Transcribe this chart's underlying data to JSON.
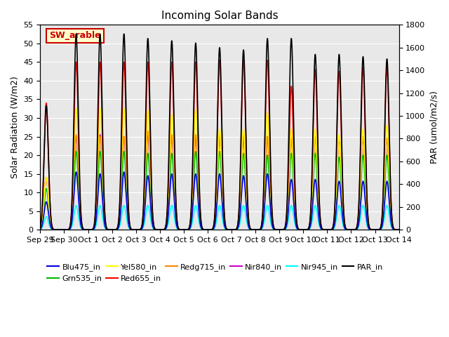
{
  "title": "Incoming Solar Bands",
  "ylabel_left": "Solar Radiation (W/m2)",
  "ylabel_right": "PAR (umol/m2/s)",
  "ylim_left": [
    0,
    55
  ],
  "ylim_right": [
    0,
    1800
  ],
  "yticks_left": [
    0,
    5,
    10,
    15,
    20,
    25,
    30,
    35,
    40,
    45,
    50,
    55
  ],
  "yticks_right": [
    0,
    200,
    400,
    600,
    800,
    1000,
    1200,
    1400,
    1600,
    1800
  ],
  "background_color": "#e8e8e8",
  "annotation_text": "SW_arable",
  "day_labels": [
    "Sep 29",
    "Sep 30",
    "Oct 1",
    "Oct 2",
    "Oct 3",
    "Oct 4",
    "Oct 5",
    "Oct 6",
    "Oct 7",
    "Oct 8",
    "Oct 9",
    "Oct 10",
    "Oct 11",
    "Oct 12",
    "Oct 13",
    "Oct 14"
  ],
  "n_days": 15,
  "pulse_sigma": 0.09,
  "series_colors": {
    "Blu475_in": "#0000dd",
    "Grn535_in": "#00bb00",
    "Yel580_in": "#ffff00",
    "Red655_in": "#ff0000",
    "Redg715_in": "#ff8800",
    "Nir840_in": "#cc00cc",
    "Nir945_in": "#00ffff",
    "PAR_in": "#000000"
  },
  "blu_peaks": [
    7.5,
    15.5,
    15.0,
    15.5,
    14.5,
    15.0,
    15.0,
    15.0,
    14.5,
    15.0,
    13.5,
    13.5,
    13.0,
    13.0,
    13.0,
    0
  ],
  "grn_peaks": [
    11.0,
    21.0,
    21.0,
    21.0,
    20.5,
    20.5,
    21.0,
    21.0,
    20.5,
    20.0,
    20.5,
    20.5,
    19.5,
    20.0,
    20.0,
    0
  ],
  "yel_peaks": [
    14.0,
    32.5,
    32.5,
    32.5,
    32.0,
    31.0,
    32.5,
    27.0,
    27.0,
    31.5,
    27.0,
    27.0,
    25.5,
    27.0,
    28.0,
    0
  ],
  "red_peaks": [
    34.0,
    45.0,
    45.0,
    45.0,
    45.0,
    45.0,
    45.0,
    45.5,
    45.5,
    45.5,
    38.5,
    43.0,
    42.5,
    43.5,
    43.5,
    0
  ],
  "redg_peaks": [
    14.0,
    25.5,
    25.0,
    25.0,
    26.5,
    25.5,
    25.5,
    25.5,
    25.5,
    25.0,
    24.5,
    25.0,
    25.0,
    25.0,
    24.5,
    0
  ],
  "nir840_peaks": [
    14.0,
    25.0,
    25.5,
    25.0,
    25.5,
    25.0,
    25.0,
    25.0,
    24.5,
    25.0,
    24.5,
    25.0,
    24.5,
    24.5,
    24.5,
    0
  ],
  "nir945_peaks": [
    3.5,
    6.5,
    6.5,
    6.5,
    6.5,
    6.5,
    6.5,
    6.5,
    6.5,
    6.5,
    6.5,
    6.5,
    6.5,
    6.5,
    6.5,
    0
  ],
  "par_peaks": [
    1090,
    1720,
    1720,
    1720,
    1680,
    1660,
    1640,
    1600,
    1580,
    1680,
    1680,
    1540,
    1540,
    1520,
    1500,
    0
  ],
  "peak_centers": [
    0.25,
    1.5,
    2.5,
    3.5,
    4.5,
    5.5,
    6.5,
    7.5,
    8.5,
    9.5,
    10.5,
    11.5,
    12.5,
    13.5,
    14.5,
    15.0
  ]
}
